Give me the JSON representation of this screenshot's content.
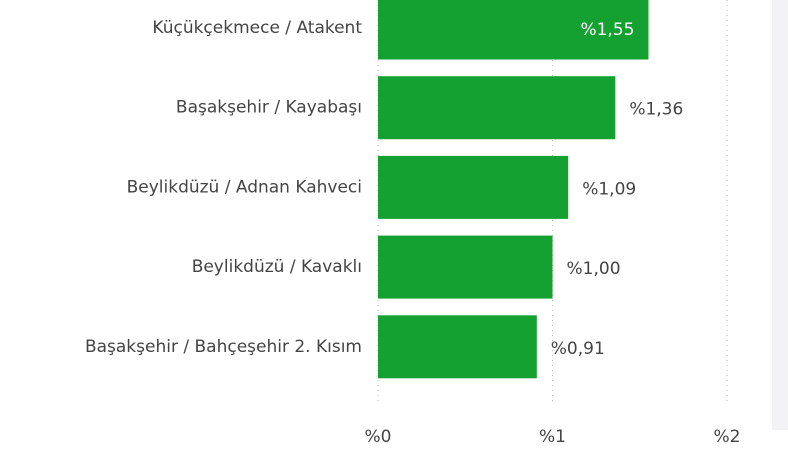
{
  "chart_data": {
    "type": "barh",
    "categories": [
      "Küçükçekmece / Atakent",
      "Başakşehir / Kayabaşı",
      "Beylikdüzü / Adnan Kahveci",
      "Beylikdüzü / Kavaklı",
      "Başakşehir / Bahçeşehir 2. Kısım"
    ],
    "values": [
      1.55,
      1.36,
      1.09,
      1.0,
      0.91
    ],
    "value_labels": [
      "%1,55",
      "%1,36",
      "%1,09",
      "%1,00",
      "%0,91"
    ],
    "color": "#14a131",
    "xlim": [
      0,
      2
    ],
    "xticks": [
      {
        "value": 0,
        "label": "%0"
      },
      {
        "value": 1,
        "label": "%1"
      },
      {
        "value": 2,
        "label": "%2"
      }
    ],
    "grid": true
  }
}
